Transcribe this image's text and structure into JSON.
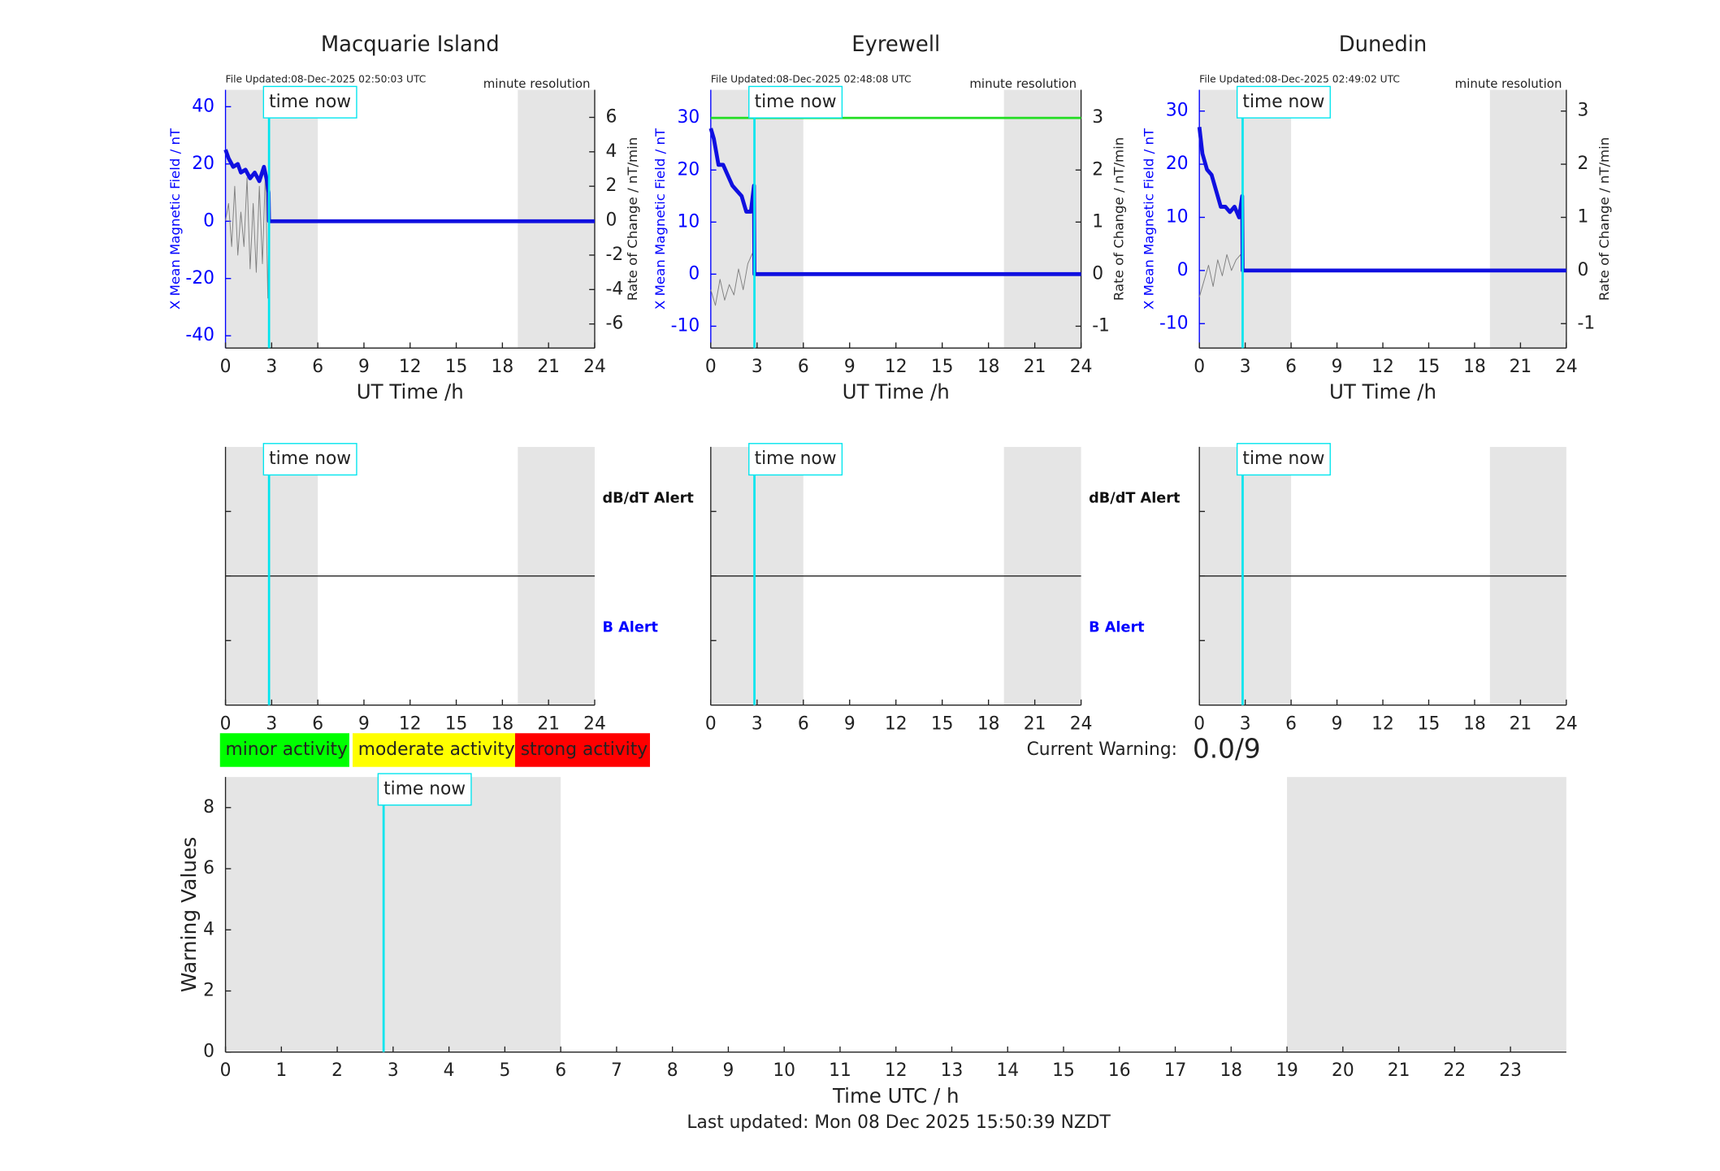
{
  "chart_data": [
    {
      "type": "field",
      "title": "Macquarie Island",
      "subtitle": "File Updated:08-Dec-2025 02:50:03 UTC",
      "annotation": "minute resolution",
      "xlabel": "UT Time /h",
      "ylabel": "X Mean Magnetic Field / nT",
      "y2label": "Rate of Change / nT/min",
      "ycolor": "#0000ff",
      "xlim": [
        0,
        24
      ],
      "xticks": [
        0,
        3,
        6,
        9,
        12,
        15,
        18,
        21,
        24
      ],
      "ylim": [
        -44.3,
        45.9
      ],
      "yticks": [
        -40,
        -20,
        0,
        20,
        40
      ],
      "y2lim": [
        -7.4,
        7.6
      ],
      "y2ticks": [
        -6,
        -4,
        -2,
        0,
        2,
        4,
        6
      ],
      "shaded": [
        [
          0,
          6
        ],
        [
          19,
          24
        ]
      ],
      "time_now": 2.83,
      "time_now_label": "time now",
      "series": [
        {
          "color": "#808080",
          "axis": "y2",
          "width": 0.7,
          "x": [
            0,
            0.2,
            0.4,
            0.6,
            0.8,
            1.0,
            1.2,
            1.4,
            1.6,
            1.8,
            2.0,
            2.2,
            2.4,
            2.6,
            2.75,
            2.83,
            24
          ],
          "values": [
            0,
            1,
            -1.5,
            2,
            -2,
            0.5,
            -1.5,
            2.5,
            -2.8,
            1,
            -3,
            2,
            -2.5,
            3,
            -4.5,
            0,
            0
          ]
        },
        {
          "color": "#1010e0",
          "axis": "y",
          "width": 3.5,
          "x": [
            0,
            0.2,
            0.5,
            0.8,
            1.0,
            1.3,
            1.6,
            1.9,
            2.2,
            2.5,
            2.7,
            2.8,
            2.83,
            24
          ],
          "values": [
            25,
            22,
            19,
            20,
            17,
            18,
            15,
            17,
            14,
            19,
            14,
            10,
            0,
            0
          ]
        }
      ]
    },
    {
      "type": "field",
      "title": "Eyrewell",
      "subtitle": "File Updated:08-Dec-2025 02:48:08 UTC",
      "annotation": "minute resolution",
      "xlabel": "UT Time /h",
      "ylabel": "X Mean Magnetic Field / nT",
      "y2label": "Rate of Change / nT/min",
      "ycolor": "#0000ff",
      "xlim": [
        0,
        24
      ],
      "xticks": [
        0,
        3,
        6,
        9,
        12,
        15,
        18,
        21,
        24
      ],
      "ylim": [
        -14.2,
        35.4
      ],
      "yticks": [
        -10,
        0,
        10,
        20,
        30
      ],
      "y2lim": [
        -1.42,
        3.54
      ],
      "y2ticks": [
        -1,
        0,
        1,
        2,
        3
      ],
      "shaded": [
        [
          0,
          6
        ],
        [
          19,
          24
        ]
      ],
      "time_now": 2.83,
      "time_now_label": "time now",
      "series": [
        {
          "color": "#22dd22",
          "axis": "y2",
          "width": 2,
          "x": [
            0,
            24
          ],
          "values": [
            3,
            3
          ]
        },
        {
          "color": "#808080",
          "axis": "y2",
          "width": 0.7,
          "x": [
            0,
            0.3,
            0.6,
            0.9,
            1.2,
            1.5,
            1.8,
            2.1,
            2.4,
            2.7,
            2.83,
            24
          ],
          "values": [
            -0.3,
            -0.6,
            -0.1,
            -0.5,
            -0.2,
            -0.4,
            0.1,
            -0.3,
            0.2,
            0.4,
            0,
            0
          ]
        },
        {
          "color": "#1010e0",
          "axis": "y",
          "width": 3.5,
          "x": [
            0,
            0.2,
            0.5,
            0.8,
            1.1,
            1.4,
            1.7,
            2.0,
            2.3,
            2.6,
            2.8,
            2.83,
            24
          ],
          "values": [
            28,
            26,
            21,
            21,
            19,
            17,
            16,
            15,
            12,
            12,
            17,
            0,
            0
          ]
        }
      ]
    },
    {
      "type": "field",
      "title": "Dunedin",
      "subtitle": "File Updated:08-Dec-2025 02:49:02 UTC",
      "annotation": "minute resolution",
      "xlabel": "UT Time /h",
      "ylabel": "X Mean Magnetic Field / nT",
      "y2label": "Rate of Change / nT/min",
      "ycolor": "#0000ff",
      "xlim": [
        0,
        24
      ],
      "xticks": [
        0,
        3,
        6,
        9,
        12,
        15,
        18,
        21,
        24
      ],
      "ylim": [
        -14.6,
        34.0
      ],
      "yticks": [
        -10,
        0,
        10,
        20,
        30
      ],
      "y2lim": [
        -1.46,
        3.4
      ],
      "y2ticks": [
        -1,
        0,
        1,
        2,
        3
      ],
      "shaded": [
        [
          0,
          6
        ],
        [
          19,
          24
        ]
      ],
      "time_now": 2.83,
      "time_now_label": "time now",
      "series": [
        {
          "color": "#808080",
          "axis": "y2",
          "width": 0.7,
          "x": [
            0,
            0.3,
            0.6,
            0.9,
            1.2,
            1.5,
            1.8,
            2.1,
            2.4,
            2.7,
            2.83,
            24
          ],
          "values": [
            -0.5,
            -0.2,
            0.1,
            -0.3,
            0.2,
            -0.1,
            0.3,
            0,
            0.2,
            0.3,
            0,
            0
          ]
        },
        {
          "color": "#1010e0",
          "axis": "y",
          "width": 3.5,
          "x": [
            0,
            0.2,
            0.5,
            0.8,
            1.1,
            1.4,
            1.7,
            2.0,
            2.3,
            2.6,
            2.8,
            2.83,
            24
          ],
          "values": [
            27,
            22,
            19,
            18,
            15,
            12,
            12,
            11,
            12,
            10,
            14,
            0,
            0
          ]
        }
      ]
    },
    {
      "type": "alert",
      "top_label": "dB/dT Alert",
      "bottom_label": "B Alert",
      "xlim": [
        0,
        24
      ],
      "xticks": [
        0,
        3,
        6,
        9,
        12,
        15,
        18,
        21,
        24
      ],
      "shaded": [
        [
          0,
          6
        ],
        [
          19,
          24
        ]
      ],
      "time_now": 2.83,
      "time_now_label": "time now"
    },
    {
      "type": "alert",
      "top_label": "dB/dT Alert",
      "bottom_label": "B Alert",
      "xlim": [
        0,
        24
      ],
      "xticks": [
        0,
        3,
        6,
        9,
        12,
        15,
        18,
        21,
        24
      ],
      "shaded": [
        [
          0,
          6
        ],
        [
          19,
          24
        ]
      ],
      "time_now": 2.83,
      "time_now_label": "time now"
    },
    {
      "type": "alert",
      "xlim": [
        0,
        24
      ],
      "xticks": [
        0,
        3,
        6,
        9,
        12,
        15,
        18,
        21,
        24
      ],
      "shaded": [
        [
          0,
          6
        ],
        [
          19,
          24
        ]
      ],
      "time_now": 2.83,
      "time_now_label": "time now"
    },
    {
      "type": "warning",
      "xlabel": "Time UTC / h",
      "ylabel": "Warning Values",
      "xlim": [
        0,
        24
      ],
      "xticks": [
        0,
        1,
        2,
        3,
        4,
        5,
        6,
        7,
        8,
        9,
        10,
        11,
        12,
        13,
        14,
        15,
        16,
        17,
        18,
        19,
        20,
        21,
        22,
        23
      ],
      "ylim": [
        0,
        9
      ],
      "yticks": [
        0,
        2,
        4,
        6,
        8
      ],
      "shaded": [
        [
          0,
          6
        ],
        [
          19,
          24
        ]
      ],
      "time_now": 2.83,
      "time_now_label": "time now"
    }
  ],
  "warning_legend": [
    {
      "label": "minor activity",
      "color": "#00ff00"
    },
    {
      "label": "moderate activity",
      "color": "#ffff00"
    },
    {
      "label": "strong activity",
      "color": "#ff0000"
    }
  ],
  "current_warning": {
    "label": "Current Warning:",
    "value": "0.0/9"
  },
  "footer": "Last updated: Mon 08 Dec 2025 15:50:39 NZDT"
}
